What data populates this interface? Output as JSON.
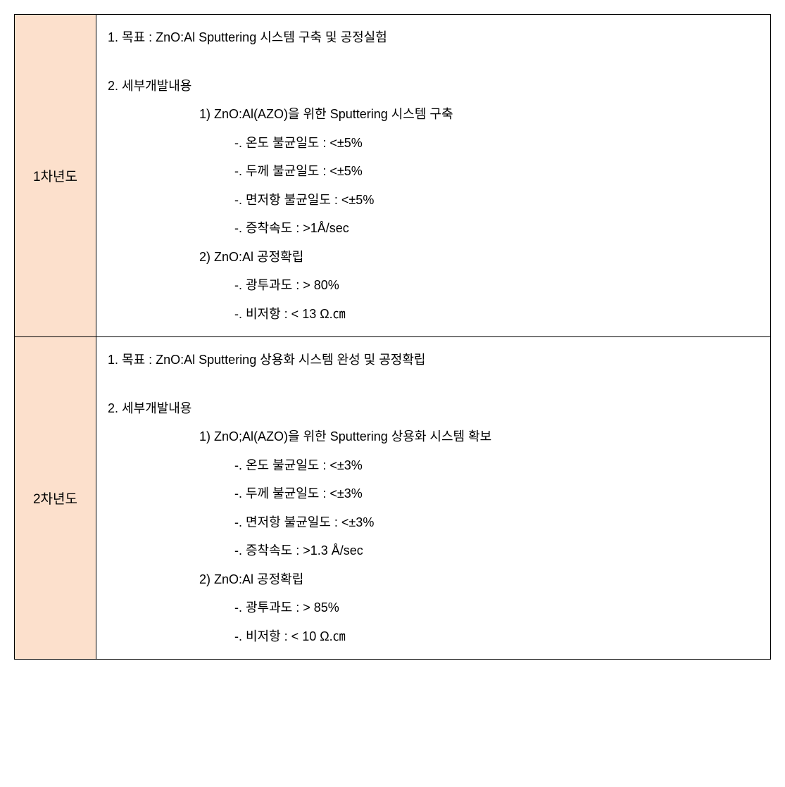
{
  "rows": [
    {
      "year_label": "1차년도",
      "goal": "1. 목표 : ZnO:Al Sputtering 시스템 구축 및 공정실험",
      "detail_header": "2. 세부개발내용",
      "groups": [
        {
          "title": "1) ZnO:Al(AZO)을 위한 Sputtering 시스템 구축",
          "items": [
            "-. 온도 불균일도 : <±5%",
            "-. 두께 불균일도 : <±5%",
            "-. 면저항 불균일도 : <±5%",
            "-. 증착속도 :  >1Å/sec"
          ]
        },
        {
          "title": "2) ZnO:Al 공정확립",
          "items": [
            "-. 광투과도 :  > 80%",
            "-. 비저항 :  < 13 Ω.㎝"
          ]
        }
      ]
    },
    {
      "year_label": "2차년도",
      "goal": "1. 목표 : ZnO:Al Sputtering 상용화 시스템 완성 및 공정확립",
      "detail_header": "2. 세부개발내용",
      "groups": [
        {
          "title": "1) ZnO;Al(AZO)을 위한 Sputtering 상용화 시스템 확보",
          "items": [
            "-. 온도 불균일도 : <±3%",
            "-. 두께 불균일도 : <±3%",
            "-. 면저항 불균일도 : <±3%",
            "-. 증착속도 :  >1.3 Å/sec"
          ]
        },
        {
          "title": "2) ZnO:Al 공정확립",
          "items": [
            "-. 광투과도 : > 85%",
            "-. 비저항 :  < 10 Ω.㎝"
          ]
        }
      ]
    }
  ],
  "colors": {
    "year_cell_bg": "#fce0cc",
    "border": "#000000",
    "text": "#000000",
    "background": "#ffffff"
  }
}
